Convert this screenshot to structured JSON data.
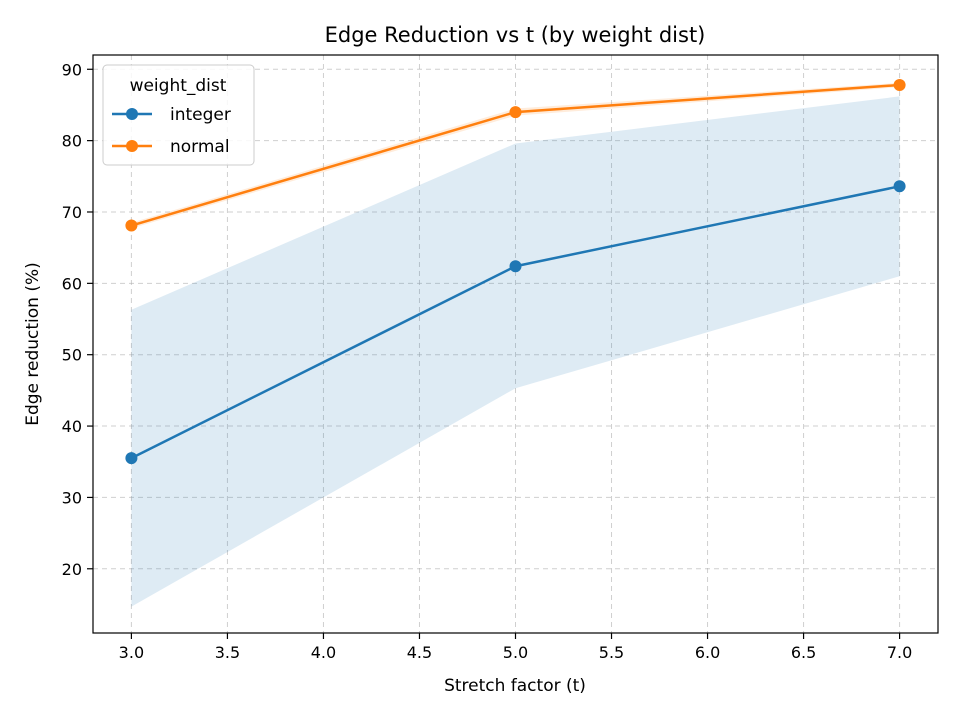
{
  "chart_data": {
    "type": "line",
    "title": "Edge Reduction vs t (by weight dist)",
    "xlabel": "Stretch factor (t)",
    "ylabel": "Edge reduction (%)",
    "xlim": [
      2.8,
      7.2
    ],
    "ylim": [
      11,
      92
    ],
    "x_ticks": [
      "3.0",
      "3.5",
      "4.0",
      "4.5",
      "5.0",
      "5.5",
      "6.0",
      "6.5",
      "7.0"
    ],
    "y_ticks": [
      "20",
      "30",
      "40",
      "50",
      "60",
      "70",
      "80",
      "90"
    ],
    "grid": true,
    "legend": {
      "title": "weight_dist",
      "placement": "top-left"
    },
    "series": [
      {
        "name": "integer",
        "color": "#1f77b4",
        "x": [
          3.0,
          5.0,
          7.0
        ],
        "y": [
          35.5,
          62.4,
          73.6
        ],
        "band_lower": [
          14.7,
          45.3,
          61.0
        ],
        "band_upper": [
          56.3,
          79.6,
          86.2
        ]
      },
      {
        "name": "normal",
        "color": "#ff7f0e",
        "x": [
          3.0,
          5.0,
          7.0
        ],
        "y": [
          68.1,
          84.0,
          87.8
        ],
        "band_lower": [
          67.7,
          83.5,
          87.5
        ],
        "band_upper": [
          68.5,
          84.5,
          88.1
        ]
      }
    ]
  }
}
